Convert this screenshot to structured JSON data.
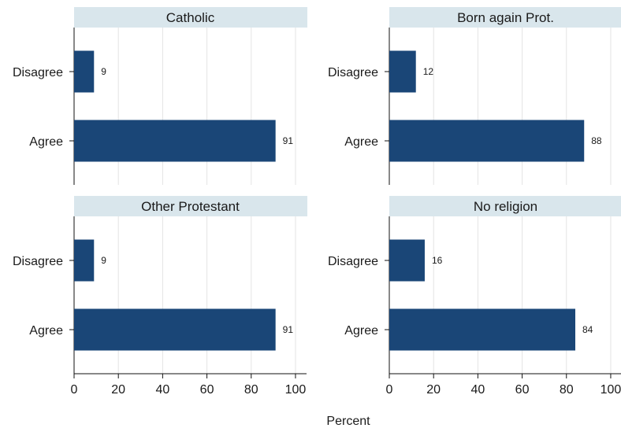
{
  "chart_data": {
    "type": "bar",
    "orientation": "horizontal",
    "xlabel": "Percent",
    "xlim": [
      0,
      105
    ],
    "xticks": [
      0,
      20,
      40,
      60,
      80,
      100
    ],
    "grid": true,
    "bar_color": "#1a4677",
    "strip_color": "#d9e6ec",
    "categories": [
      "Disagree",
      "Agree"
    ],
    "panels": [
      {
        "title": "Catholic",
        "values": [
          9,
          91
        ]
      },
      {
        "title": "Born again Prot.",
        "values": [
          12,
          88
        ]
      },
      {
        "title": "Other Protestant",
        "values": [
          9,
          91
        ]
      },
      {
        "title": "No religion",
        "values": [
          16,
          84
        ]
      }
    ]
  }
}
